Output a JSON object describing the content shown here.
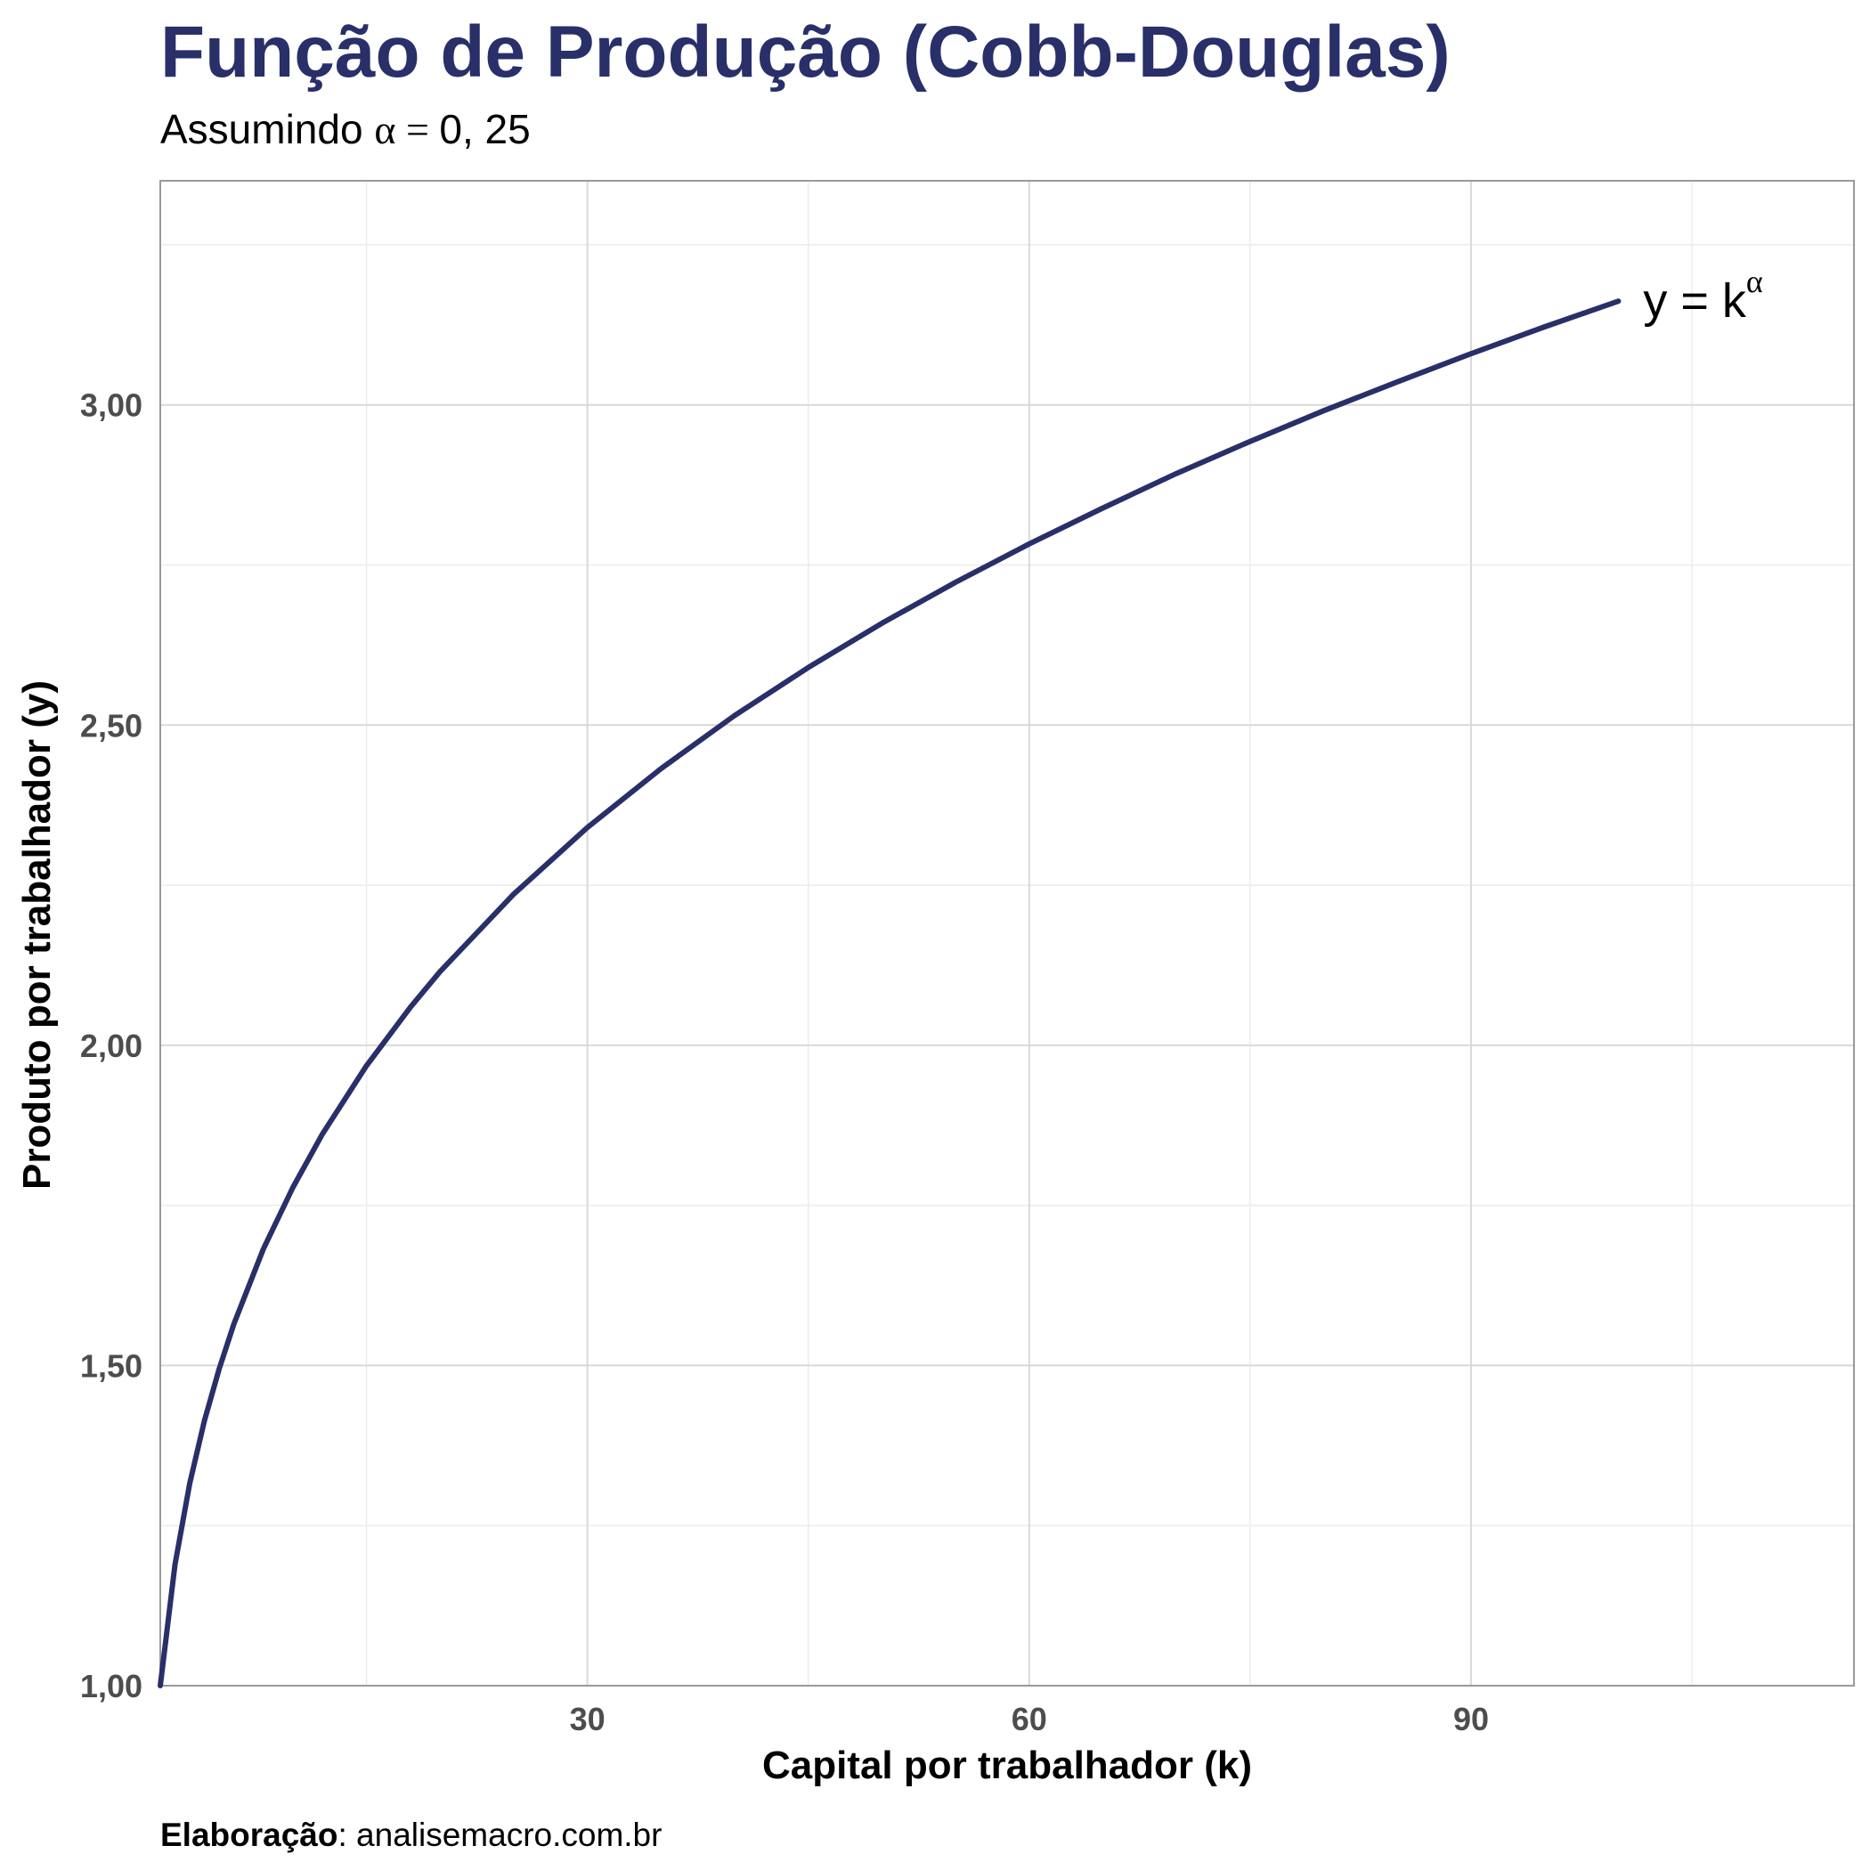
{
  "title": "Função de Produção (Cobb-Douglas)",
  "subtitle": {
    "prefix": "Assumindo ",
    "alpha_symbol": "α",
    "equals": " = ",
    "value": "0, 25"
  },
  "caption": {
    "label": "Elaboração",
    "text": ": analisemacro.com.br"
  },
  "colors": {
    "accent": "#282f69",
    "line": "#282f69",
    "grid_major": "#d9d9d9",
    "grid_minor": "#ececec",
    "panel_border": "#9a9a9a",
    "tick_text": "#4d4d4d"
  },
  "chart_data": {
    "type": "line",
    "xlabel": "Capital por trabalhador (k)",
    "ylabel": "Produto por trabalhador (y)",
    "x_ticks": [
      30,
      60,
      90
    ],
    "x_tick_labels": [
      "30",
      "60",
      "90"
    ],
    "y_ticks": [
      1.0,
      1.5,
      2.0,
      2.5,
      3.0
    ],
    "y_tick_labels": [
      "1,00",
      "1,50",
      "2,00",
      "2,50",
      "3,00"
    ],
    "xlim": [
      1,
      116
    ],
    "ylim": [
      1.0,
      3.35
    ],
    "grid": true,
    "series": [
      {
        "label_base": "y = k",
        "label_superscript": "α",
        "x": [
          1,
          2,
          3,
          4,
          5,
          6,
          8,
          10,
          12,
          15,
          18,
          20,
          25,
          30,
          35,
          40,
          45,
          50,
          55,
          60,
          65,
          70,
          75,
          80,
          85,
          90,
          95,
          100
        ],
        "y": [
          1.0,
          1.189,
          1.316,
          1.414,
          1.495,
          1.565,
          1.682,
          1.778,
          1.861,
          1.968,
          2.06,
          2.115,
          2.236,
          2.34,
          2.432,
          2.515,
          2.59,
          2.659,
          2.723,
          2.783,
          2.839,
          2.893,
          2.943,
          2.991,
          3.036,
          3.08,
          3.122,
          3.162
        ]
      }
    ]
  }
}
